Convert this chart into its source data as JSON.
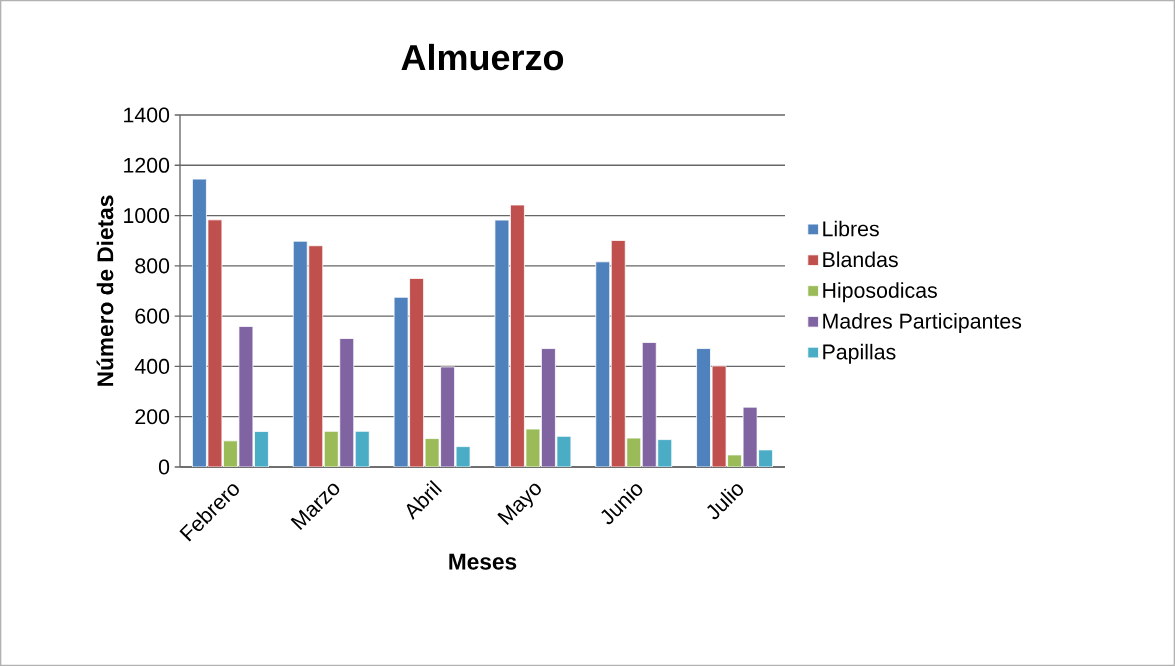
{
  "chart_data": {
    "type": "bar",
    "title": "Almuerzo",
    "xlabel": "Meses",
    "ylabel": "Número de Dietas",
    "categories": [
      "Febrero",
      "Marzo",
      "Abril",
      "Mayo",
      "Junio",
      "Julio"
    ],
    "series": [
      {
        "name": "Libres",
        "color": "#4f81bd",
        "values": [
          1145,
          898,
          675,
          982,
          816,
          471
        ]
      },
      {
        "name": "Blandas",
        "color": "#c0504d",
        "values": [
          983,
          880,
          750,
          1042,
          901,
          402
        ]
      },
      {
        "name": "Hiposodicas",
        "color": "#9bbb59",
        "values": [
          104,
          142,
          113,
          151,
          115,
          48
        ]
      },
      {
        "name": "Madres Participantes",
        "color": "#8064a2",
        "values": [
          559,
          511,
          398,
          471,
          495,
          238
        ]
      },
      {
        "name": "Papillas",
        "color": "#4bacc6",
        "values": [
          141,
          142,
          81,
          122,
          109,
          68
        ]
      }
    ],
    "ylim": [
      0,
      1400
    ],
    "yticks": [
      0,
      200,
      400,
      600,
      800,
      1000,
      1200,
      1400
    ],
    "grid": "y",
    "legend": "right"
  }
}
